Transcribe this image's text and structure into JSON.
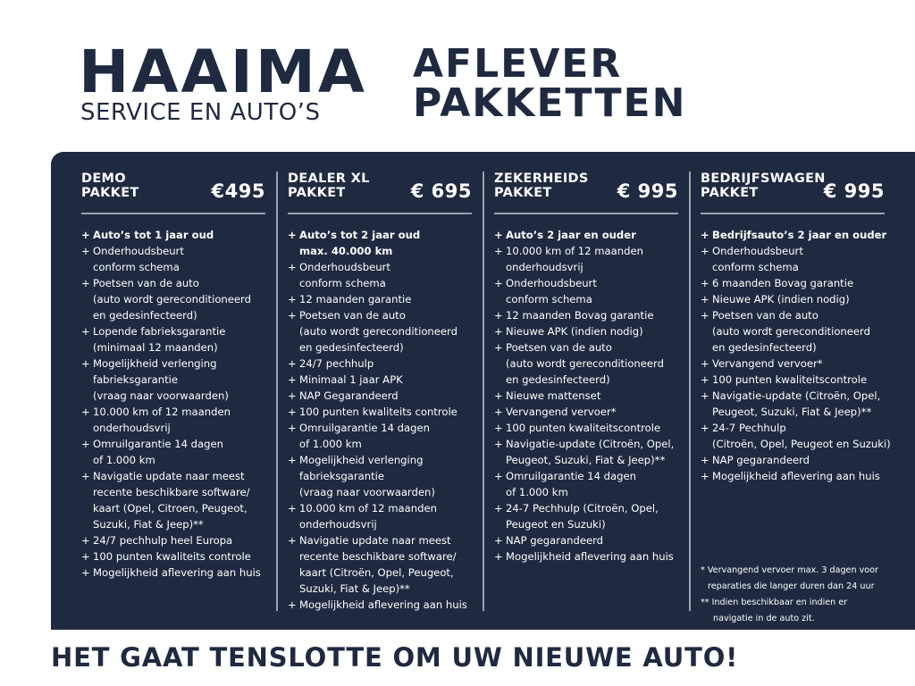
{
  "brand": {
    "name": "HAAIMA",
    "subtitle": "SERVICE EN AUTO’S"
  },
  "title": {
    "line1": "AFLEVER",
    "line2": "PAKKETTEN"
  },
  "colors": {
    "navy": "#1f2a40",
    "rule": "#9aa2b2",
    "text_on_dark": "#ffffff"
  },
  "bullet": "+",
  "packages": [
    {
      "name1": "DEMO",
      "name2": "PAKKET",
      "price": "€495",
      "items": [
        [
          "Auto’s tot 1 jaar oud"
        ],
        [
          "Onderhoudsbeurt",
          "conform schema"
        ],
        [
          "Poetsen van de auto",
          "(auto wordt gereconditioneerd",
          "en gedesinfecteerd)"
        ],
        [
          "Lopende fabrieksgarantie",
          "(minimaal 12 maanden)"
        ],
        [
          "Mogelijkheid verlenging",
          "fabrieksgarantie",
          "(vraag naar voorwaarden)"
        ],
        [
          "10.000 km of 12 maanden",
          "onderhoudsvrij"
        ],
        [
          "Omruilgarantie 14 dagen",
          "of 1.000 km"
        ],
        [
          "Navigatie update naar meest",
          "recente beschikbare software/",
          "kaart (Opel, Citroen,  Peugeot,",
          "Suzuki, Fiat & Jeep)**"
        ],
        [
          "24/7 pechhulp heel Europa"
        ],
        [
          "100 punten kwaliteits controle"
        ],
        [
          "Mogelijkheid aflevering aan huis"
        ]
      ]
    },
    {
      "name1": "DEALER XL",
      "name2": "PAKKET",
      "price": "€ 695",
      "items": [
        [
          "Auto’s tot 2 jaar oud",
          "max. 40.000 km"
        ],
        [
          "Onderhoudsbeurt",
          "conform schema"
        ],
        [
          "12 maanden garantie"
        ],
        [
          "Poetsen van de auto",
          "(auto wordt gereconditioneerd",
          "en gedesinfecteerd)"
        ],
        [
          "24/7 pechhulp"
        ],
        [
          "Minimaal 1 jaar APK"
        ],
        [
          "NAP Gegarandeerd"
        ],
        [
          "100 punten kwaliteits controle"
        ],
        [
          "Omruilgarantie 14 dagen",
          "of 1.000 km"
        ],
        [
          "Mogelijkheid verlenging",
          "fabrieksgarantie",
          "(vraag naar voorwaarden)"
        ],
        [
          "10.000 km of 12 maanden",
          "onderhoudsvrij"
        ],
        [
          "Navigatie update naar meest",
          "recente beschikbare software/",
          "kaart (Citroën, Opel, Peugeot,",
          "Suzuki, Fiat & Jeep)**"
        ],
        [
          "Mogelijkheid aflevering aan huis"
        ]
      ]
    },
    {
      "name1": "ZEKERHEIDS",
      "name2": "PAKKET",
      "price": "€ 995",
      "items": [
        [
          "Auto’s 2 jaar en ouder"
        ],
        [
          "10.000 km of 12 maanden",
          "onderhoudsvrij"
        ],
        [
          "Onderhoudsbeurt",
          "conform schema"
        ],
        [
          "12 maanden Bovag garantie"
        ],
        [
          "Nieuwe APK (indien nodig)"
        ],
        [
          "Poetsen van de auto",
          "(auto wordt gereconditioneerd",
          "en gedesinfecteerd)"
        ],
        [
          "Nieuwe mattenset"
        ],
        [
          "Vervangend vervoer*"
        ],
        [
          "100 punten kwaliteitscontrole"
        ],
        [
          "Navigatie-update (Citroën, Opel,",
          "Peugeot, Suzuki, Fiat & Jeep)**"
        ],
        [
          "Omruilgarantie 14 dagen",
          "of 1.000 km"
        ],
        [
          "24-7 Pechhulp (Citroën, Opel,",
          "Peugeot en Suzuki)"
        ],
        [
          "NAP gegarandeerd"
        ],
        [
          "Mogelijkheid aflevering aan huis"
        ]
      ]
    },
    {
      "name1": "BEDRIJFSWAGEN",
      "name2": "PAKKET",
      "price": "€ 995",
      "items": [
        [
          "Bedrijfsauto’s 2 jaar en ouder"
        ],
        [
          "Onderhoudsbeurt",
          "conform schema"
        ],
        [
          "6 maanden Bovag garantie"
        ],
        [
          "Nieuwe APK (indien nodig)"
        ],
        [
          "Poetsen van de auto",
          "(auto wordt gereconditioneerd",
          "en gedesinfecteerd)"
        ],
        [
          "Vervangend vervoer*"
        ],
        [
          "100 punten kwaliteitscontrole"
        ],
        [
          "Navigatie-update (Citroën, Opel,",
          "Peugeot, Suzuki, Fiat & Jeep)**"
        ],
        [
          "24-7 Pechhulp",
          "(Citroën, Opel, Peugeot en Suzuki)"
        ],
        [
          "NAP gegarandeerd"
        ],
        [
          "Mogelijkheid aflevering aan huis"
        ]
      ]
    }
  ],
  "footnotes": {
    "note1_line1": "* Vervangend vervoer max. 3 dagen voor",
    "note1_line2": "reparaties die langer duren dan 24 uur",
    "note2_line1": "** Indien beschikbaar en indien er",
    "note2_line2": "navigatie in de auto zit."
  },
  "tagline": "HET GAAT TENSLOTTE OM UW NIEUWE AUTO!"
}
